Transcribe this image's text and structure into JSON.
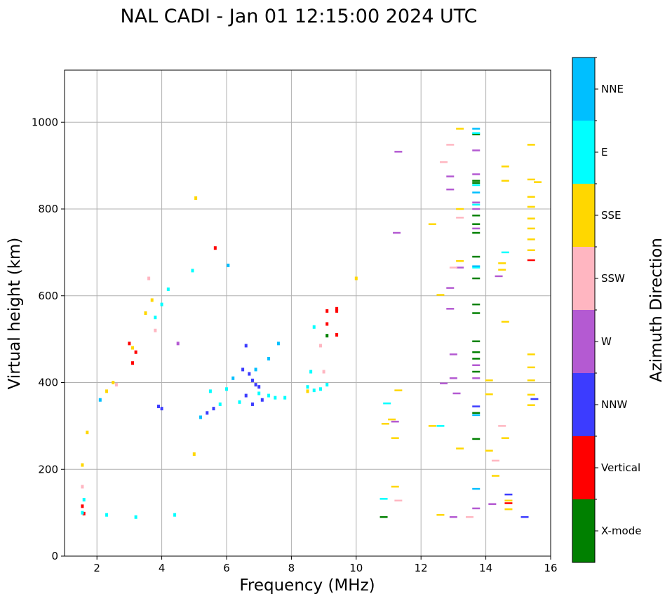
{
  "chart_data": {
    "type": "scatter",
    "title": "NAL CADI - Jan 01 12:15:00 2024 UTC",
    "xlabel": "Frequency (MHz)",
    "ylabel": "Virtual height (km)",
    "xlim": [
      1,
      16
    ],
    "ylim": [
      0,
      1120
    ],
    "xticks": [
      2,
      4,
      6,
      8,
      10,
      12,
      14,
      16
    ],
    "yticks": [
      0,
      200,
      400,
      600,
      800,
      1000
    ],
    "grid": true,
    "colorbar": {
      "label": "Azimuth Direction",
      "categories": [
        {
          "name": "X-mode",
          "color": "#008000"
        },
        {
          "name": "Vertical",
          "color": "#ff0000"
        },
        {
          "name": "NNW",
          "color": "#3c3cff"
        },
        {
          "name": "W",
          "color": "#b45ad2"
        },
        {
          "name": "SSW",
          "color": "#ffb6c1"
        },
        {
          "name": "SSE",
          "color": "#ffd700"
        },
        {
          "name": "E",
          "color": "#00ffff"
        },
        {
          "name": "NNE",
          "color": "#00bfff"
        }
      ]
    },
    "series": [
      {
        "name": "X-mode",
        "points": [
          [
            10.85,
            90
          ],
          [
            13.7,
            972
          ],
          [
            13.7,
            865
          ],
          [
            13.7,
            785
          ],
          [
            13.7,
            765
          ],
          [
            13.7,
            745
          ],
          [
            13.7,
            690
          ],
          [
            13.7,
            640
          ],
          [
            13.7,
            580
          ],
          [
            13.7,
            560
          ],
          [
            13.7,
            495
          ],
          [
            13.7,
            470
          ],
          [
            13.7,
            455
          ],
          [
            13.7,
            425
          ],
          [
            13.7,
            330
          ],
          [
            13.7,
            270
          ],
          [
            13.7,
            860
          ],
          [
            9.1,
            508
          ]
        ]
      },
      {
        "name": "Vertical",
        "points": [
          [
            1.55,
            115
          ],
          [
            1.6,
            98
          ],
          [
            5.65,
            710
          ],
          [
            9.1,
            565
          ],
          [
            9.4,
            565
          ],
          [
            9.4,
            570
          ],
          [
            9.1,
            535
          ],
          [
            9.4,
            510
          ],
          [
            14.7,
            122
          ],
          [
            15.4,
            682
          ],
          [
            3.1,
            445
          ],
          [
            3.2,
            470
          ],
          [
            3.0,
            490
          ]
        ]
      },
      {
        "name": "NNW",
        "points": [
          [
            4.0,
            340
          ],
          [
            6.6,
            485
          ],
          [
            6.5,
            430
          ],
          [
            6.7,
            420
          ],
          [
            6.8,
            405
          ],
          [
            6.9,
            395
          ],
          [
            7.0,
            390
          ],
          [
            6.6,
            370
          ],
          [
            6.8,
            350
          ],
          [
            7.1,
            360
          ],
          [
            14.7,
            142
          ],
          [
            15.2,
            90
          ],
          [
            15.5,
            362
          ],
          [
            13.7,
            345
          ],
          [
            3.9,
            345
          ],
          [
            5.4,
            330
          ],
          [
            5.6,
            340
          ]
        ]
      },
      {
        "name": "W",
        "points": [
          [
            4.5,
            490
          ],
          [
            11.2,
            310
          ],
          [
            13.0,
            410
          ],
          [
            13.0,
            465
          ],
          [
            12.9,
            570
          ],
          [
            12.9,
            618
          ],
          [
            12.9,
            875
          ],
          [
            12.9,
            845
          ],
          [
            13.2,
            665
          ],
          [
            13.7,
            935
          ],
          [
            13.7,
            880
          ],
          [
            13.7,
            815
          ],
          [
            13.7,
            800
          ],
          [
            13.7,
            755
          ],
          [
            13.7,
            440
          ],
          [
            13.7,
            410
          ],
          [
            14.4,
            645
          ],
          [
            14.2,
            120
          ],
          [
            12.7,
            398
          ],
          [
            13.1,
            375
          ],
          [
            13.0,
            90
          ],
          [
            13.7,
            110
          ],
          [
            11.25,
            745
          ],
          [
            11.3,
            932
          ]
        ]
      },
      {
        "name": "SSW",
        "points": [
          [
            1.55,
            160
          ],
          [
            12.7,
            908
          ],
          [
            12.9,
            948
          ],
          [
            13.2,
            780
          ],
          [
            13.0,
            665
          ],
          [
            14.3,
            220
          ],
          [
            14.5,
            300
          ],
          [
            13.5,
            90
          ],
          [
            11.3,
            128
          ],
          [
            9.0,
            425
          ],
          [
            8.9,
            485
          ],
          [
            2.6,
            395
          ],
          [
            3.6,
            640
          ],
          [
            3.8,
            520
          ]
        ]
      },
      {
        "name": "SSE",
        "points": [
          [
            1.55,
            210
          ],
          [
            1.7,
            285
          ],
          [
            5.0,
            235
          ],
          [
            5.05,
            825
          ],
          [
            10.0,
            640
          ],
          [
            10.9,
            305
          ],
          [
            11.1,
            315
          ],
          [
            11.2,
            272
          ],
          [
            11.2,
            160
          ],
          [
            11.3,
            382
          ],
          [
            12.35,
            765
          ],
          [
            12.35,
            300
          ],
          [
            12.6,
            602
          ],
          [
            12.6,
            95
          ],
          [
            13.2,
            985
          ],
          [
            13.2,
            800
          ],
          [
            13.2,
            680
          ],
          [
            13.2,
            248
          ],
          [
            14.1,
            405
          ],
          [
            14.1,
            373
          ],
          [
            14.1,
            243
          ],
          [
            14.3,
            185
          ],
          [
            14.5,
            675
          ],
          [
            14.5,
            660
          ],
          [
            14.6,
            898
          ],
          [
            14.6,
            865
          ],
          [
            14.6,
            540
          ],
          [
            14.6,
            272
          ],
          [
            14.7,
            108
          ],
          [
            14.7,
            128
          ],
          [
            15.4,
            948
          ],
          [
            15.4,
            868
          ],
          [
            15.4,
            828
          ],
          [
            15.4,
            805
          ],
          [
            15.4,
            778
          ],
          [
            15.4,
            755
          ],
          [
            15.4,
            730
          ],
          [
            15.4,
            705
          ],
          [
            15.4,
            465
          ],
          [
            15.4,
            435
          ],
          [
            15.4,
            405
          ],
          [
            15.4,
            372
          ],
          [
            15.4,
            348
          ],
          [
            15.6,
            862
          ],
          [
            2.3,
            380
          ],
          [
            2.5,
            400
          ],
          [
            3.1,
            480
          ],
          [
            3.5,
            560
          ],
          [
            3.7,
            590
          ],
          [
            8.5,
            380
          ]
        ]
      },
      {
        "name": "E",
        "points": [
          [
            1.55,
            100
          ],
          [
            1.6,
            130
          ],
          [
            2.3,
            95
          ],
          [
            3.2,
            90
          ],
          [
            4.4,
            95
          ],
          [
            4.95,
            658
          ],
          [
            5.5,
            380
          ],
          [
            6.0,
            385
          ],
          [
            6.4,
            355
          ],
          [
            7.0,
            375
          ],
          [
            7.3,
            370
          ],
          [
            7.5,
            365
          ],
          [
            7.8,
            365
          ],
          [
            8.5,
            390
          ],
          [
            8.7,
            382
          ],
          [
            8.9,
            385
          ],
          [
            9.1,
            395
          ],
          [
            8.6,
            425
          ],
          [
            8.7,
            528
          ],
          [
            10.95,
            352
          ],
          [
            10.85,
            132
          ],
          [
            12.6,
            300
          ],
          [
            13.7,
            975
          ],
          [
            13.7,
            855
          ],
          [
            13.7,
            810
          ],
          [
            13.7,
            665
          ],
          [
            14.6,
            700
          ],
          [
            4.2,
            615
          ],
          [
            4.0,
            580
          ],
          [
            3.8,
            550
          ],
          [
            5.8,
            350
          ]
        ]
      },
      {
        "name": "NNE",
        "points": [
          [
            13.7,
            985
          ],
          [
            13.7,
            838
          ],
          [
            13.7,
            668
          ],
          [
            13.7,
            325
          ],
          [
            13.7,
            155
          ],
          [
            6.05,
            670
          ],
          [
            7.6,
            490
          ],
          [
            6.2,
            410
          ],
          [
            6.9,
            430
          ],
          [
            7.3,
            455
          ],
          [
            5.2,
            320
          ],
          [
            2.1,
            360
          ]
        ]
      }
    ]
  }
}
